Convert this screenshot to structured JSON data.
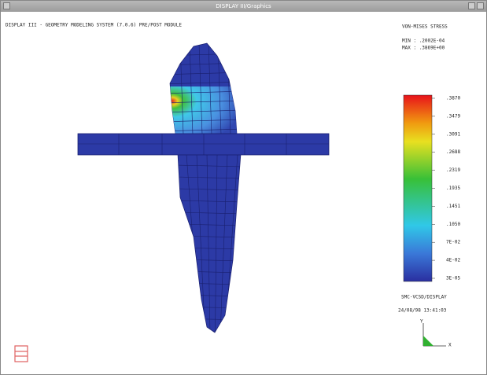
{
  "window": {
    "title": "DISPLAY III/Graphics"
  },
  "header": {
    "title": "DISPLAY III - GEOMETRY MODELING SYSTEM (7.0.6) PRE/POST MODULE"
  },
  "result": {
    "label": "VON-MISES STRESS",
    "min": "MIN : .2002E-04",
    "max": "MAX : .3869E+00"
  },
  "colorbar": {
    "labels": [
      ".3870",
      ".3479",
      ".3091",
      ".2688",
      ".2319",
      ".1935",
      ".1451",
      ".1050",
      "7E-02",
      "4E-02",
      "3E-05"
    ]
  },
  "footer": {
    "program": "SMC-VCSD/DISPLAY",
    "timestamp": "24/08/98 13:41:03"
  },
  "triad": {
    "y": "Y",
    "x": "X"
  }
}
